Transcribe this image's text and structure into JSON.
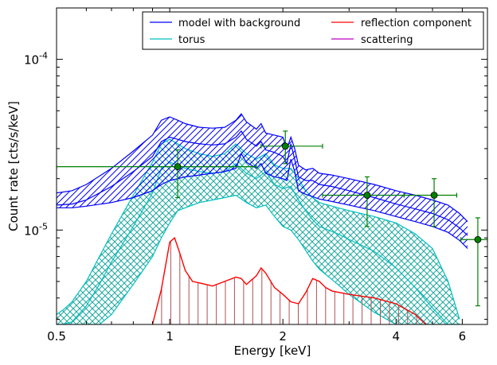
{
  "chart_data": {
    "type": "line",
    "title": "",
    "xlabel": "Energy [keV]",
    "ylabel": "Count rate [cts/s/keV]",
    "x_scale": "log",
    "y_scale": "log",
    "xlim": [
      0.5,
      7.0
    ],
    "ylim": [
      2.8e-06,
      0.0002
    ],
    "x_ticks": [
      {
        "value": 0.5,
        "label": "0.5"
      },
      {
        "value": 1,
        "label": "1"
      },
      {
        "value": 2,
        "label": "2"
      },
      {
        "value": 4,
        "label": "4"
      },
      {
        "value": 6,
        "label": "6"
      }
    ],
    "y_ticks": [
      {
        "value": 1e-05,
        "base": "10",
        "exp": "-5"
      },
      {
        "value": 0.0001,
        "base": "10",
        "exp": "-4"
      }
    ],
    "legend": {
      "placement": "top-right",
      "columns": 2,
      "entries": [
        {
          "label": "model with background",
          "color": "#0000ff"
        },
        {
          "label": "reflection component",
          "color": "#ff0000"
        },
        {
          "label": "torus",
          "color": "#00bfbf"
        },
        {
          "label": "scattering",
          "color": "#bf00bf"
        }
      ]
    },
    "series": [
      {
        "name": "model with background",
        "color": "#0000ff",
        "hatch": "diagonal",
        "x": [
          0.5,
          0.55,
          0.6,
          0.7,
          0.8,
          0.9,
          0.95,
          1.0,
          1.05,
          1.1,
          1.2,
          1.3,
          1.4,
          1.5,
          1.55,
          1.6,
          1.7,
          1.75,
          1.8,
          1.9,
          2.0,
          2.05,
          2.1,
          2.15,
          2.2,
          2.3,
          2.4,
          2.5,
          2.7,
          3.0,
          3.5,
          4.0,
          4.5,
          5.0,
          5.5,
          5.9,
          6.2
        ],
        "upper": [
          1.65e-05,
          1.7e-05,
          1.85e-05,
          2.3e-05,
          2.9e-05,
          3.6e-05,
          4.4e-05,
          4.6e-05,
          4.4e-05,
          4.2e-05,
          4e-05,
          3.95e-05,
          4e-05,
          4.4e-05,
          4.8e-05,
          4.3e-05,
          3.9e-05,
          4.2e-05,
          3.7e-05,
          3.6e-05,
          3.5e-05,
          3e-05,
          3.5e-05,
          3e-05,
          2.4e-05,
          2.25e-05,
          2.3e-05,
          2.15e-05,
          2.1e-05,
          2e-05,
          1.85e-05,
          1.7e-05,
          1.6e-05,
          1.5e-05,
          1.4e-05,
          1.25e-05,
          1.12e-05
        ],
        "mid": [
          1.4e-05,
          1.42e-05,
          1.5e-05,
          1.8e-05,
          2.2e-05,
          2.7e-05,
          3.3e-05,
          3.5e-05,
          3.4e-05,
          3.3e-05,
          3.2e-05,
          3.15e-05,
          3.2e-05,
          3.5e-05,
          3.8e-05,
          3.4e-05,
          3.1e-05,
          3.3e-05,
          2.95e-05,
          2.85e-05,
          2.7e-05,
          2.45e-05,
          3.2e-05,
          2.6e-05,
          2.05e-05,
          1.95e-05,
          1.95e-05,
          1.85e-05,
          1.8e-05,
          1.7e-05,
          1.55e-05,
          1.42e-05,
          1.33e-05,
          1.25e-05,
          1.15e-05,
          1.03e-05,
          9.3e-06
        ],
        "lower": [
          1.35e-05,
          1.35e-05,
          1.38e-05,
          1.45e-05,
          1.55e-05,
          1.7e-05,
          1.85e-05,
          1.95e-05,
          2e-05,
          2.05e-05,
          2.1e-05,
          2.15e-05,
          2.2e-05,
          2.3e-05,
          2.8e-05,
          2.5e-05,
          2.3e-05,
          2.45e-05,
          2.15e-05,
          2.05e-05,
          2e-05,
          1.95e-05,
          2.6e-05,
          2.2e-05,
          1.7e-05,
          1.62e-05,
          1.57e-05,
          1.52e-05,
          1.47e-05,
          1.4e-05,
          1.3e-05,
          1.2e-05,
          1.12e-05,
          1.05e-05,
          9.7e-06,
          8.7e-06,
          7.8e-06
        ]
      },
      {
        "name": "torus",
        "color": "#00bfbf",
        "hatch": "cross",
        "x": [
          0.5,
          0.52,
          0.55,
          0.6,
          0.65,
          0.7,
          0.8,
          0.9,
          0.95,
          1.0,
          1.05,
          1.1,
          1.2,
          1.3,
          1.4,
          1.5,
          1.6,
          1.7,
          1.8,
          1.9,
          2.0,
          2.1,
          2.2,
          2.3,
          2.4,
          2.5,
          2.8,
          3.0,
          3.5,
          4.0,
          4.5,
          5.0,
          5.5,
          5.9
        ],
        "upper": [
          3.2e-06,
          3.4e-06,
          3.8e-06,
          5e-06,
          7e-06,
          9.5e-06,
          1.6e-05,
          2.5e-05,
          3.2e-05,
          3.4e-05,
          3.2e-05,
          3e-05,
          2.8e-05,
          2.7e-05,
          2.8e-05,
          3.2e-05,
          2.8e-05,
          2.6e-05,
          2.8e-05,
          2.4e-05,
          2.3e-05,
          2.3e-05,
          2e-05,
          1.7e-05,
          1.55e-05,
          1.45e-05,
          1.35e-05,
          1.3e-05,
          1.2e-05,
          1.1e-05,
          9.5e-06,
          7.8e-06,
          5e-06,
          3e-06
        ],
        "mid": [
          2.8e-06,
          2.8e-06,
          2.9e-06,
          3.6e-06,
          4.8e-06,
          6.5e-06,
          1.05e-05,
          1.65e-05,
          2.3e-05,
          2.5e-05,
          2.4e-05,
          2.3e-05,
          2.2e-05,
          2.15e-05,
          2.2e-05,
          2.45e-05,
          2.15e-05,
          2e-05,
          2.2e-05,
          1.85e-05,
          1.75e-05,
          1.8e-05,
          1.5e-05,
          1.3e-05,
          1.15e-05,
          1.05e-05,
          9.5e-06,
          8.8e-06,
          7.5e-06,
          6e-06,
          4.6e-06,
          3.5e-06,
          2.8e-06,
          2.8e-06
        ],
        "lower": [
          2.8e-06,
          2.8e-06,
          2.8e-06,
          2.8e-06,
          2.8e-06,
          3.2e-06,
          4.8e-06,
          7e-06,
          9e-06,
          1.1e-05,
          1.3e-05,
          1.35e-05,
          1.45e-05,
          1.5e-05,
          1.55e-05,
          1.6e-05,
          1.45e-05,
          1.35e-05,
          1.4e-05,
          1.2e-05,
          1.05e-05,
          1e-05,
          8.8e-06,
          7.6e-06,
          6.6e-06,
          5.9e-06,
          4.8e-06,
          4.2e-06,
          3.3e-06,
          2.8e-06,
          2.8e-06,
          2.8e-06,
          2.8e-06,
          2.8e-06
        ]
      },
      {
        "name": "reflection component",
        "color": "#ff0000",
        "x": [
          0.9,
          0.95,
          1.0,
          1.03,
          1.06,
          1.1,
          1.15,
          1.2,
          1.3,
          1.4,
          1.5,
          1.55,
          1.6,
          1.7,
          1.75,
          1.8,
          1.9,
          2.0,
          2.1,
          2.2,
          2.3,
          2.4,
          2.5,
          2.6,
          2.7,
          3.0,
          3.5,
          4.0,
          4.5,
          4.8
        ],
        "values": [
          2.8e-06,
          4.5e-06,
          8.5e-06,
          9e-06,
          7.5e-06,
          5.8e-06,
          5e-06,
          4.9e-06,
          4.7e-06,
          5e-06,
          5.3e-06,
          5.2e-06,
          4.8e-06,
          5.4e-06,
          6e-06,
          5.6e-06,
          4.6e-06,
          4.2e-06,
          3.8e-06,
          3.7e-06,
          4.3e-06,
          5.2e-06,
          5e-06,
          4.6e-06,
          4.4e-06,
          4.2e-06,
          4e-06,
          3.7e-06,
          3.2e-06,
          2.8e-06
        ]
      },
      {
        "name": "scattering",
        "color": "#bf00bf",
        "x": [],
        "values": []
      }
    ],
    "data_points": {
      "color": "#008000",
      "points": [
        {
          "x": 1.05,
          "y": 2.35e-05,
          "xlo": 0.5,
          "xhi": 1.7,
          "ylo": 1.55e-05,
          "yhi": 2.95e-05
        },
        {
          "x": 2.03,
          "y": 3.1e-05,
          "xlo": 1.75,
          "xhi": 2.55,
          "ylo": 2.45e-05,
          "yhi": 3.8e-05
        },
        {
          "x": 3.35,
          "y": 1.6e-05,
          "xlo": 2.55,
          "xhi": 4.2,
          "ylo": 1.05e-05,
          "yhi": 2.05e-05
        },
        {
          "x": 5.05,
          "y": 1.6e-05,
          "xlo": 4.2,
          "xhi": 5.8,
          "ylo": 1.05e-05,
          "yhi": 2e-05
        },
        {
          "x": 6.6,
          "y": 8.8e-06,
          "xlo": 5.95,
          "xhi": 7.0,
          "ylo": 3.6e-06,
          "yhi": 1.18e-05
        }
      ]
    }
  }
}
